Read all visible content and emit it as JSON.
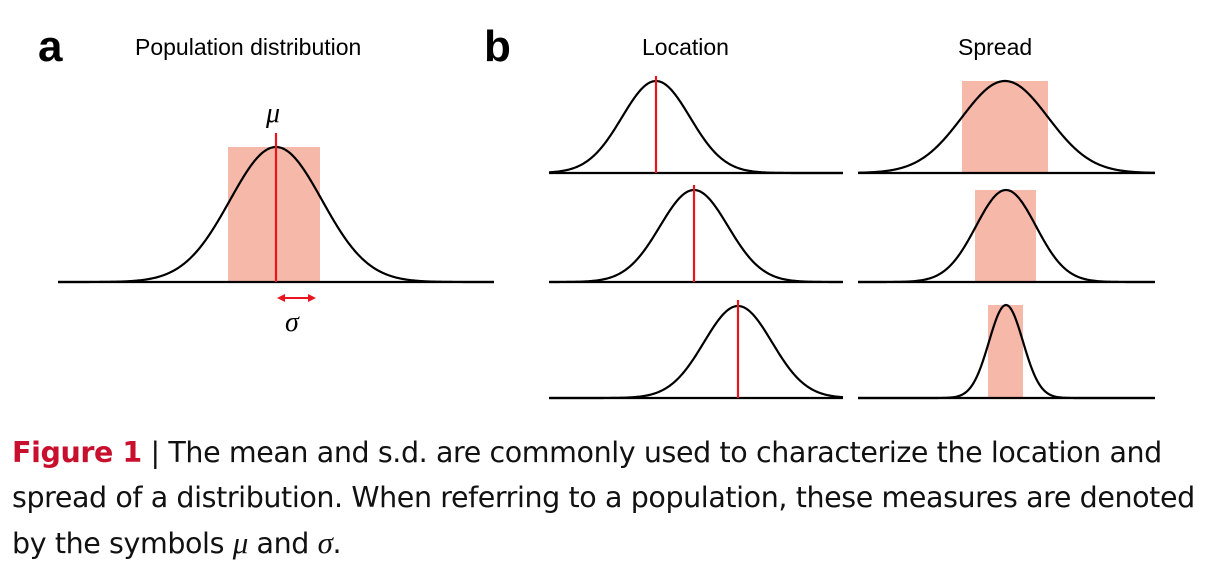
{
  "panel_a": {
    "letter": "a",
    "title": "Population distribution",
    "mu_label": "μ",
    "sigma_label": "σ"
  },
  "panel_b": {
    "letter": "b",
    "location_title": "Location",
    "spread_title": "Spread"
  },
  "caption": {
    "figure_label": "Figure 1",
    "separator": " | ",
    "text_1": "The mean and s.d. are commonly used to characterize the location and spread of a distribution. When referring to a population, these measures are denoted by the symbols ",
    "mu": "μ",
    "and": " and ",
    "sigma": "σ",
    "end": "."
  },
  "colors": {
    "mean_line": "#e8141e",
    "sd_box": "#f6b8a8",
    "figure_label": "#c8102e"
  }
}
